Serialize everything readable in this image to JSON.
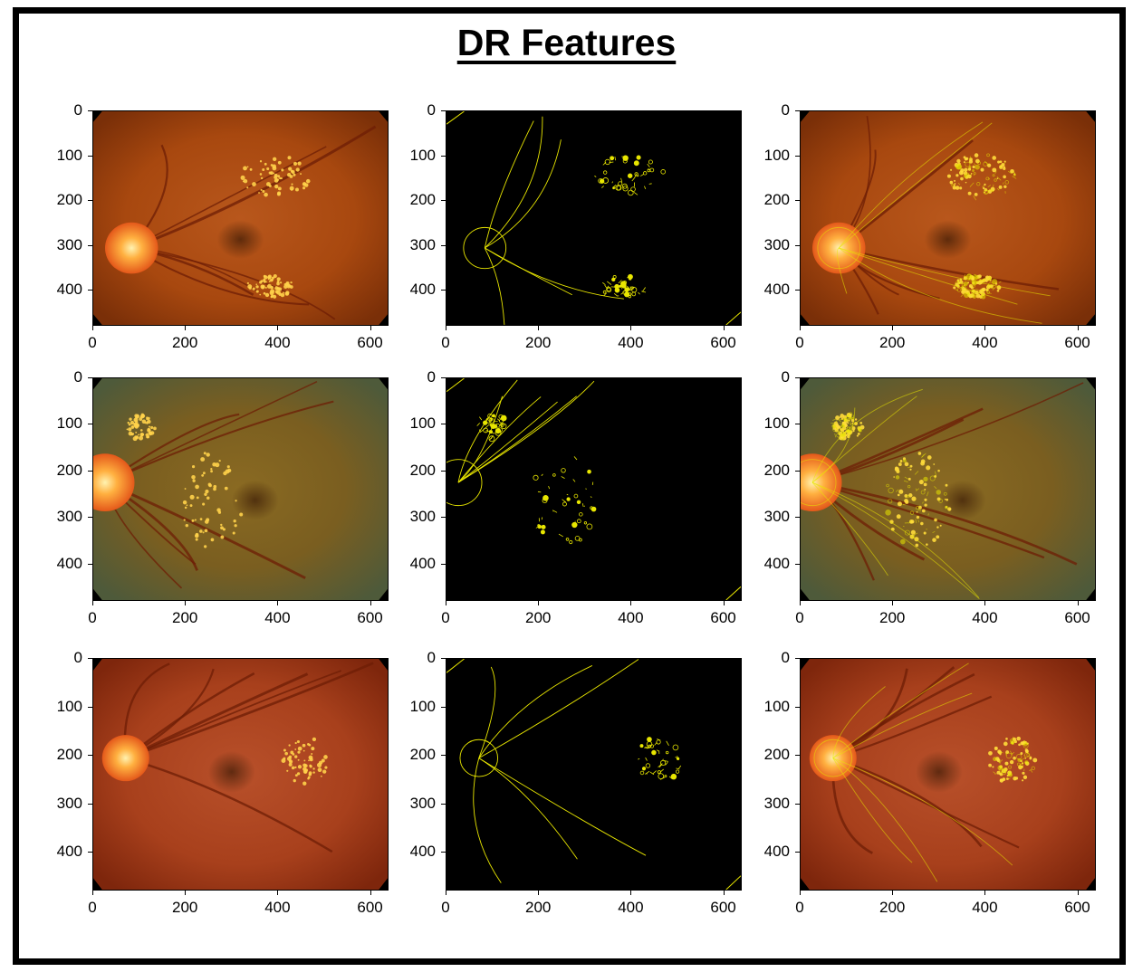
{
  "title": "DR Features",
  "axes": {
    "y_ticks": [
      "0",
      "100",
      "200",
      "300",
      "400"
    ],
    "x_ticks": [
      "0",
      "200",
      "400",
      "600"
    ],
    "x_values": [
      0,
      200,
      400,
      600
    ],
    "y_values": [
      0,
      100,
      200,
      300,
      400
    ],
    "x_max": 640,
    "y_max": 480
  },
  "columns": [
    "fundus",
    "feature-edges",
    "overlay"
  ],
  "rows": [
    {
      "id": "row-1",
      "tint": "orange"
    },
    {
      "id": "row-2",
      "tint": "olive"
    },
    {
      "id": "row-3",
      "tint": "red"
    }
  ],
  "colors": {
    "edge": "#e8e600",
    "background_black": "#000000",
    "frame": "#000000"
  }
}
